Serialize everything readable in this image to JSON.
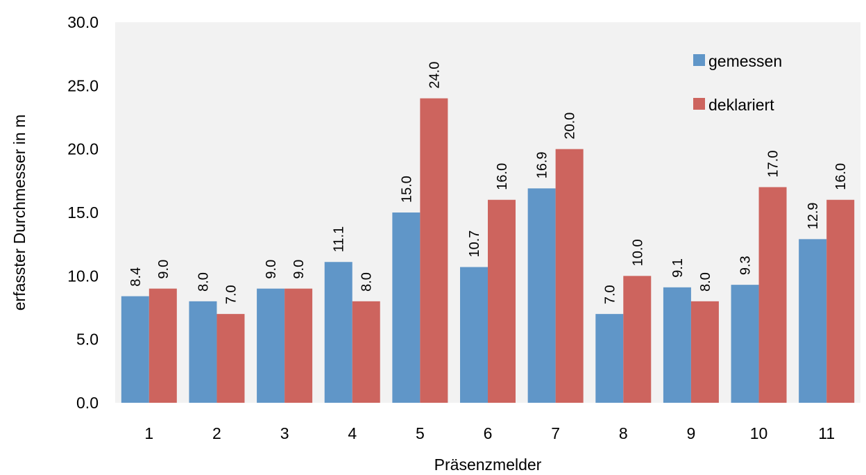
{
  "chart_data": {
    "type": "bar",
    "categories": [
      "1",
      "2",
      "3",
      "4",
      "5",
      "6",
      "7",
      "8",
      "9",
      "10",
      "11"
    ],
    "series": [
      {
        "name": "gemessen",
        "color": "#6096C8",
        "values": [
          8.4,
          8.0,
          9.0,
          11.1,
          15.0,
          10.7,
          16.9,
          7.0,
          9.1,
          9.3,
          12.9
        ],
        "labels": [
          "8.4",
          "8.0",
          "9.0",
          "11.1",
          "15.0",
          "10.7",
          "16.9",
          "7.0",
          "9.1",
          "9.3",
          "12.9"
        ]
      },
      {
        "name": "deklariert",
        "color": "#CD645E",
        "values": [
          9.0,
          7.0,
          9.0,
          8.0,
          24.0,
          16.0,
          20.0,
          10.0,
          8.0,
          17.0,
          16.0
        ],
        "labels": [
          "9.0",
          "7.0",
          "9.0",
          "8.0",
          "24.0",
          "16.0",
          "20.0",
          "10.0",
          "8.0",
          "17.0",
          "16.0"
        ]
      }
    ],
    "xlabel": "Präsenzmelder",
    "ylabel": "erfasster Durchmesser in m",
    "ylim": [
      0,
      30
    ],
    "yticks": [
      "0.0",
      "5.0",
      "10.0",
      "15.0",
      "20.0",
      "25.0",
      "30.0"
    ],
    "ytick_values": [
      0,
      5,
      10,
      15,
      20,
      25,
      30
    ],
    "grid": false,
    "plot_background": "#F2F2F2",
    "legend_position": "top-right"
  }
}
